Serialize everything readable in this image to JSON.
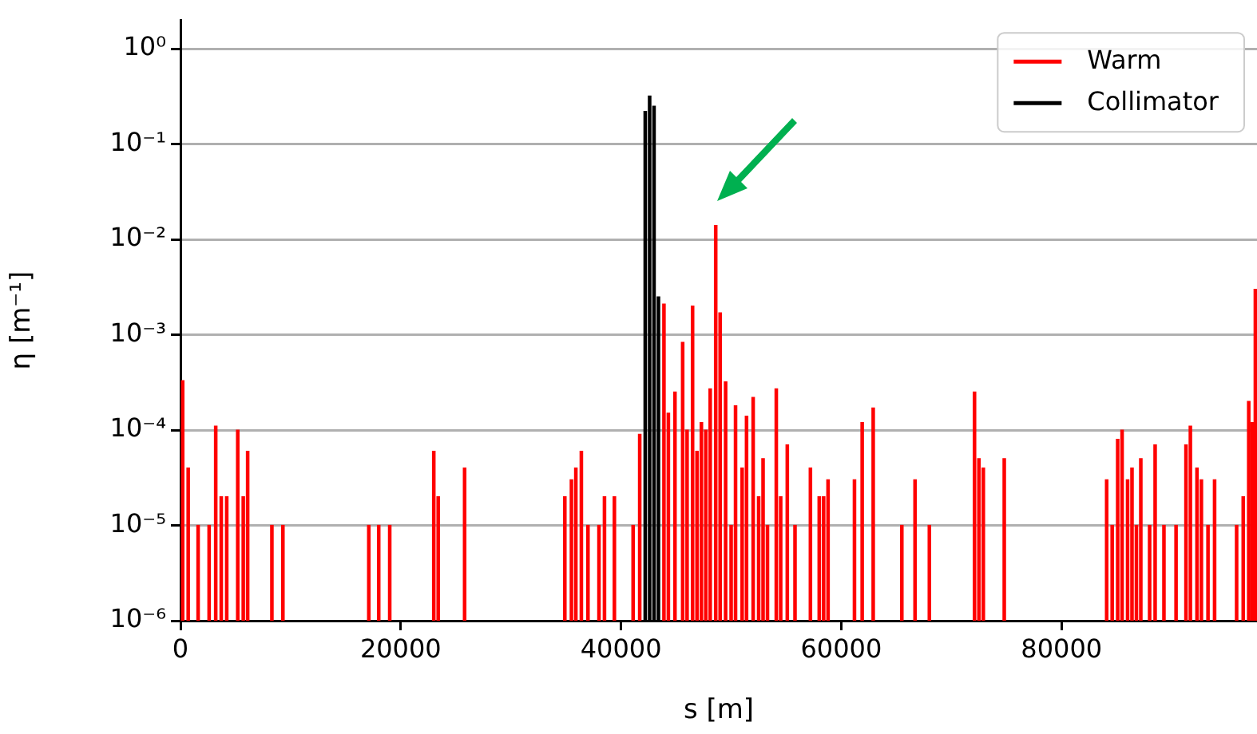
{
  "chart_data": {
    "type": "bar",
    "xlabel": "s [m]",
    "ylabel": "η [m⁻¹]",
    "log": "y",
    "grid": "y",
    "legend": "top right",
    "xlim": [
      0,
      97750
    ],
    "xticks": [
      0,
      20000,
      40000,
      60000,
      80000
    ],
    "ylim": [
      1e-06,
      2
    ],
    "yticks": [
      {
        "value": 1e-06,
        "label": "10⁻⁶"
      },
      {
        "value": 1e-05,
        "label": "10⁻⁵"
      },
      {
        "value": 0.0001,
        "label": "10⁻⁴"
      },
      {
        "value": 0.001,
        "label": "10⁻³"
      },
      {
        "value": 0.01,
        "label": "10⁻²"
      },
      {
        "value": 0.1,
        "label": "10⁻¹"
      },
      {
        "value": 1,
        "label": "10⁰"
      }
    ],
    "series": [
      {
        "name": "Warm",
        "color": "#ff0000",
        "x": [
          200,
          700,
          1600,
          2600,
          3200,
          3700,
          4200,
          5200,
          5700,
          6100,
          8300,
          9300,
          17100,
          18000,
          19000,
          23000,
          23400,
          25800,
          34900,
          35500,
          35900,
          36400,
          37000,
          38000,
          38500,
          39400,
          41100,
          41700,
          43900,
          44300,
          44900,
          45600,
          46000,
          46500,
          46900,
          47300,
          47700,
          48100,
          48600,
          49000,
          49500,
          50000,
          50400,
          51000,
          51400,
          52000,
          52500,
          52900,
          53300,
          54100,
          54500,
          55100,
          55800,
          57200,
          58000,
          58400,
          58800,
          61200,
          61900,
          62900,
          65500,
          66700,
          68000,
          72100,
          72500,
          72900,
          74800,
          84100,
          84600,
          85100,
          85500,
          86000,
          86400,
          86800,
          87200,
          88000,
          88500,
          89300,
          90400,
          91300,
          91700,
          92300,
          92700,
          93300,
          93900,
          95900,
          96500,
          97000,
          97300,
          97600
        ],
        "values": [
          0.00033,
          4e-05,
          1e-05,
          1e-05,
          0.00011,
          2e-05,
          2e-05,
          0.0001,
          2e-05,
          6e-05,
          1e-05,
          1e-05,
          1e-05,
          1e-05,
          1e-05,
          6e-05,
          2e-05,
          4e-05,
          2e-05,
          3e-05,
          4e-05,
          6e-05,
          1e-05,
          1e-05,
          2e-05,
          2e-05,
          1e-05,
          9e-05,
          0.0021,
          0.00015,
          0.00025,
          0.00083,
          0.0001,
          0.002,
          6e-05,
          0.00012,
          0.0001,
          0.00027,
          0.014,
          0.0017,
          0.00032,
          1e-05,
          0.00018,
          4e-05,
          0.00014,
          0.00022,
          2e-05,
          5e-05,
          1e-05,
          0.00027,
          2e-05,
          7e-05,
          1e-05,
          4e-05,
          2e-05,
          2e-05,
          3e-05,
          3e-05,
          0.00012,
          0.00017,
          1e-05,
          3e-05,
          1e-05,
          0.00025,
          5e-05,
          4e-05,
          5e-05,
          3e-05,
          1e-05,
          8e-05,
          0.0001,
          3e-05,
          4e-05,
          1e-05,
          5e-05,
          1e-05,
          7e-05,
          1e-05,
          1e-05,
          7e-05,
          0.00011,
          4e-05,
          3e-05,
          1e-05,
          3e-05,
          1e-05,
          2e-05,
          0.0002,
          0.00012,
          0.003
        ]
      },
      {
        "name": "Collimator",
        "color": "#000000",
        "x": [
          42200,
          42600,
          43000,
          43400
        ],
        "values": [
          0.22,
          0.32,
          0.25,
          0.0025
        ]
      }
    ]
  }
}
